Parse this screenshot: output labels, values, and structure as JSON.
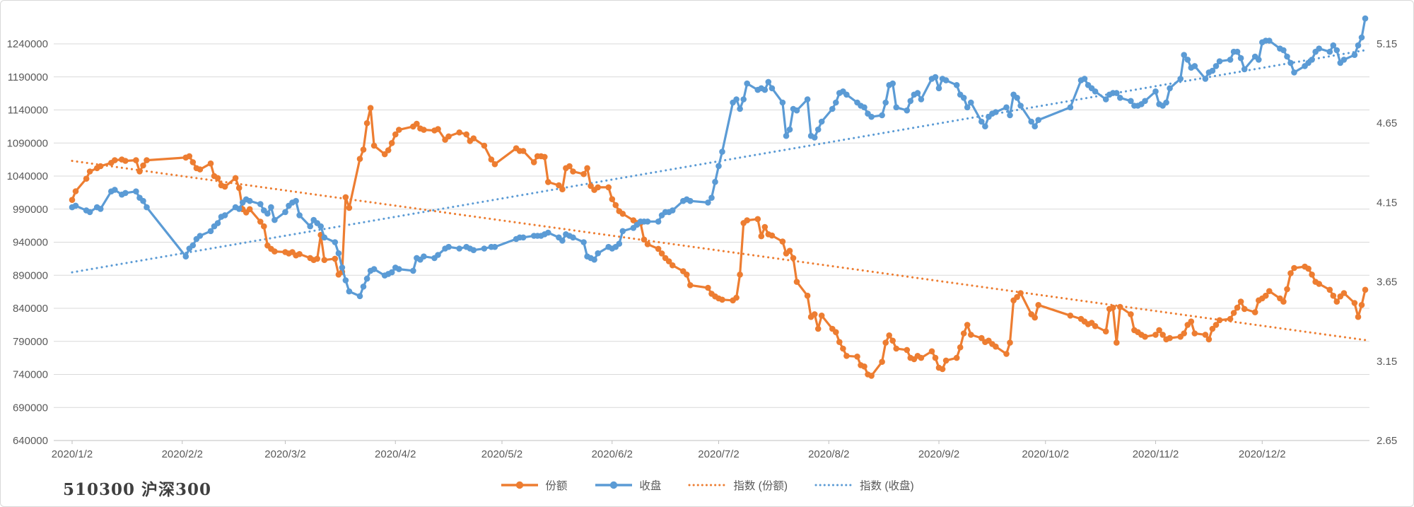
{
  "title": "510300 沪深300",
  "colors": {
    "shares": "#ED7D31",
    "close": "#5B9BD5",
    "grid": "#D9D9D9",
    "axis_line": "#BFBFBF",
    "axis_text": "#595959"
  },
  "legend": {
    "items": [
      {
        "label": "份额",
        "type": "line-marker",
        "color": "#ED7D31"
      },
      {
        "label": "收盘",
        "type": "line-marker",
        "color": "#5B9BD5"
      },
      {
        "label": "指数 (份额)",
        "type": "dotted",
        "color": "#ED7D31"
      },
      {
        "label": "指数 (收盘)",
        "type": "dotted",
        "color": "#5B9BD5"
      }
    ]
  },
  "chart_data": {
    "type": "line",
    "title": "510300 沪深300",
    "grid": true,
    "legend_position": "bottom",
    "y_left": {
      "min": 640000,
      "max": 1240000,
      "step": 50000,
      "labels": [
        "640000",
        "690000",
        "740000",
        "790000",
        "840000",
        "890000",
        "940000",
        "990000",
        "1040000",
        "1090000",
        "1140000",
        "1190000",
        "1240000"
      ]
    },
    "y_right": {
      "min": 2.65,
      "max": 5.15,
      "step": 0.5,
      "labels": [
        "2.65",
        "3.15",
        "3.65",
        "4.15",
        "4.65",
        "5.15"
      ]
    },
    "x_ticks": {
      "dates": [
        "1-2",
        "2-2",
        "3-2",
        "4-2",
        "5-2",
        "6-2",
        "7-2",
        "8-2",
        "9-2",
        "10-2",
        "11-2",
        "12-2"
      ],
      "labels": [
        "2020/1/2",
        "2020/2/2",
        "2020/3/2",
        "2020/4/2",
        "2020/5/2",
        "2020/6/2",
        "2020/7/2",
        "2020/8/2",
        "2020/9/2",
        "2020/10/2",
        "2020/11/2",
        "2020/12/2"
      ]
    },
    "dates": [
      "1-2",
      "1-3",
      "1-6",
      "1-7",
      "1-9",
      "1-10",
      "1-13",
      "1-14",
      "1-16",
      "1-17",
      "1-20",
      "1-21",
      "1-22",
      "1-23",
      "2-3",
      "2-4",
      "2-5",
      "2-6",
      "2-7",
      "2-10",
      "2-11",
      "2-12",
      "2-13",
      "2-14",
      "2-17",
      "2-18",
      "2-19",
      "2-20",
      "2-21",
      "2-24",
      "2-25",
      "2-26",
      "2-27",
      "2-28",
      "3-2",
      "3-3",
      "3-4",
      "3-5",
      "3-6",
      "3-9",
      "3-10",
      "3-11",
      "3-12",
      "3-13",
      "3-16",
      "3-17",
      "3-18",
      "3-19",
      "3-20",
      "3-23",
      "3-24",
      "3-25",
      "3-26",
      "3-27",
      "3-30",
      "3-31",
      "4-1",
      "4-2",
      "4-3",
      "4-7",
      "4-8",
      "4-9",
      "4-10",
      "4-13",
      "4-14",
      "4-16",
      "4-17",
      "4-20",
      "4-22",
      "4-23",
      "4-24",
      "4-27",
      "4-29",
      "4-30",
      "5-6",
      "5-7",
      "5-8",
      "5-11",
      "5-12",
      "5-13",
      "5-14",
      "5-15",
      "5-18",
      "5-19",
      "5-20",
      "5-21",
      "5-22",
      "5-25",
      "5-26",
      "5-27",
      "5-28",
      "5-29",
      "6-1",
      "6-2",
      "6-3",
      "6-4",
      "6-5",
      "6-8",
      "6-9",
      "6-10",
      "6-11",
      "6-12",
      "6-15",
      "6-16",
      "6-17",
      "6-18",
      "6-19",
      "6-22",
      "6-23",
      "6-24",
      "6-29",
      "6-30",
      "7-1",
      "7-2",
      "7-3",
      "7-6",
      "7-7",
      "7-8",
      "7-9",
      "7-10",
      "7-13",
      "7-14",
      "7-15",
      "7-16",
      "7-17",
      "7-20",
      "7-21",
      "7-22",
      "7-23",
      "7-24",
      "7-27",
      "7-28",
      "7-29",
      "7-30",
      "7-31",
      "8-3",
      "8-4",
      "8-5",
      "8-6",
      "8-7",
      "8-10",
      "8-11",
      "8-12",
      "8-13",
      "8-14",
      "8-17",
      "8-18",
      "8-19",
      "8-20",
      "8-21",
      "8-24",
      "8-25",
      "8-26",
      "8-27",
      "8-28",
      "8-31",
      "9-1",
      "9-2",
      "9-3",
      "9-4",
      "9-7",
      "9-8",
      "9-9",
      "9-10",
      "9-11",
      "9-14",
      "9-15",
      "9-16",
      "9-17",
      "9-18",
      "9-21",
      "9-22",
      "9-23",
      "9-24",
      "9-25",
      "9-28",
      "9-29",
      "9-30",
      "10-9",
      "10-12",
      "10-13",
      "10-14",
      "10-15",
      "10-16",
      "10-19",
      "10-20",
      "10-21",
      "10-22",
      "10-23",
      "10-26",
      "10-27",
      "10-28",
      "10-29",
      "10-30",
      "11-2",
      "11-3",
      "11-4",
      "11-5",
      "11-6",
      "11-9",
      "11-10",
      "11-11",
      "11-12",
      "11-13",
      "11-16",
      "11-17",
      "11-18",
      "11-19",
      "11-20",
      "11-23",
      "11-24",
      "11-25",
      "11-26",
      "11-27",
      "11-30",
      "12-1",
      "12-2",
      "12-3",
      "12-4",
      "12-7",
      "12-8",
      "12-9",
      "12-10",
      "12-11",
      "12-14",
      "12-15",
      "12-16",
      "12-17",
      "12-18",
      "12-21",
      "12-22",
      "12-23",
      "12-24",
      "12-25",
      "12-28",
      "12-29",
      "12-30",
      "12-31"
    ],
    "series": [
      {
        "name": "份额",
        "axis": "left",
        "color": "#ED7D31",
        "style": "line-marker",
        "values": [
          1004000,
          1017000,
          1036000,
          1047000,
          1052000,
          1055000,
          1060000,
          1064000,
          1065000,
          1063000,
          1064000,
          1047000,
          1056000,
          1064000,
          1068000,
          1070000,
          1061000,
          1052000,
          1050000,
          1059000,
          1040000,
          1037000,
          1026000,
          1024000,
          1037000,
          1022000,
          990000,
          985000,
          990000,
          971000,
          964000,
          935000,
          930000,
          926000,
          925000,
          923000,
          925000,
          920000,
          922000,
          916000,
          913000,
          915000,
          951000,
          913000,
          915000,
          891000,
          895000,
          1008000,
          992000,
          1066000,
          1080000,
          1120000,
          1143000,
          1086000,
          1073000,
          1079000,
          1090000,
          1103000,
          1110000,
          1115000,
          1119000,
          1112000,
          1110000,
          1109000,
          1111000,
          1095000,
          1100000,
          1106000,
          1103000,
          1093000,
          1097000,
          1086000,
          1065000,
          1058000,
          1082000,
          1078000,
          1078000,
          1061000,
          1070000,
          1070000,
          1069000,
          1031000,
          1026000,
          1020000,
          1052000,
          1055000,
          1047000,
          1043000,
          1052000,
          1025000,
          1019000,
          1023000,
          1023000,
          1005000,
          996000,
          987000,
          983000,
          973000,
          969000,
          969000,
          944000,
          937000,
          930000,
          923000,
          916000,
          911000,
          905000,
          896000,
          891000,
          875000,
          871000,
          862000,
          858000,
          855000,
          853000,
          852000,
          856000,
          891000,
          969000,
          973000,
          975000,
          949000,
          963000,
          952000,
          950000,
          941000,
          923000,
          927000,
          916000,
          880000,
          859000,
          827000,
          831000,
          809000,
          829000,
          809000,
          804000,
          789000,
          779000,
          768000,
          767000,
          754000,
          752000,
          740000,
          738000,
          759000,
          788000,
          799000,
          791000,
          779000,
          777000,
          765000,
          763000,
          768000,
          765000,
          775000,
          765000,
          750000,
          748000,
          761000,
          765000,
          781000,
          802000,
          815000,
          800000,
          795000,
          789000,
          791000,
          786000,
          782000,
          771000,
          788000,
          852000,
          857000,
          863000,
          831000,
          826000,
          845000,
          829000,
          824000,
          820000,
          816000,
          818000,
          813000,
          805000,
          839000,
          841000,
          788000,
          842000,
          831000,
          807000,
          804000,
          800000,
          797000,
          800000,
          807000,
          800000,
          793000,
          795000,
          797000,
          802000,
          815000,
          820000,
          802000,
          800000,
          793000,
          809000,
          815000,
          822000,
          824000,
          833000,
          841000,
          850000,
          839000,
          834000,
          852000,
          855000,
          859000,
          866000,
          855000,
          850000,
          869000,
          893000,
          901000,
          903000,
          900000,
          891000,
          880000,
          877000,
          868000,
          859000,
          850000,
          858000,
          863000,
          848000,
          827000,
          845000,
          868000
        ]
      },
      {
        "name": "收盘",
        "axis": "right",
        "color": "#5B9BD5",
        "style": "line-marker",
        "values": [
          4.12,
          4.13,
          4.1,
          4.09,
          4.12,
          4.11,
          4.22,
          4.23,
          4.2,
          4.21,
          4.22,
          4.18,
          4.16,
          4.12,
          3.81,
          3.86,
          3.88,
          3.92,
          3.94,
          3.97,
          4.0,
          4.02,
          4.06,
          4.07,
          4.12,
          4.11,
          4.15,
          4.17,
          4.16,
          4.14,
          4.1,
          4.08,
          4.12,
          4.04,
          4.09,
          4.13,
          4.15,
          4.16,
          4.07,
          4.0,
          4.04,
          4.02,
          4.0,
          3.93,
          3.9,
          3.83,
          3.74,
          3.66,
          3.59,
          3.56,
          3.62,
          3.67,
          3.72,
          3.73,
          3.69,
          3.7,
          3.71,
          3.74,
          3.73,
          3.72,
          3.8,
          3.79,
          3.81,
          3.8,
          3.82,
          3.86,
          3.87,
          3.86,
          3.87,
          3.86,
          3.85,
          3.86,
          3.87,
          3.87,
          3.92,
          3.93,
          3.93,
          3.94,
          3.94,
          3.94,
          3.95,
          3.96,
          3.93,
          3.91,
          3.95,
          3.94,
          3.93,
          3.9,
          3.81,
          3.8,
          3.79,
          3.83,
          3.87,
          3.86,
          3.87,
          3.89,
          3.97,
          3.99,
          4.01,
          4.03,
          4.03,
          4.03,
          4.03,
          4.07,
          4.09,
          4.09,
          4.1,
          4.16,
          4.17,
          4.16,
          4.15,
          4.18,
          4.28,
          4.38,
          4.47,
          4.78,
          4.8,
          4.74,
          4.8,
          4.9,
          4.86,
          4.87,
          4.86,
          4.91,
          4.87,
          4.78,
          4.57,
          4.61,
          4.74,
          4.73,
          4.8,
          4.57,
          4.56,
          4.61,
          4.66,
          4.74,
          4.78,
          4.84,
          4.85,
          4.83,
          4.78,
          4.76,
          4.75,
          4.71,
          4.69,
          4.7,
          4.78,
          4.89,
          4.9,
          4.75,
          4.73,
          4.79,
          4.83,
          4.84,
          4.8,
          4.93,
          4.94,
          4.87,
          4.93,
          4.92,
          4.89,
          4.83,
          4.81,
          4.75,
          4.78,
          4.66,
          4.63,
          4.69,
          4.71,
          4.72,
          4.75,
          4.7,
          4.83,
          4.81,
          4.76,
          4.66,
          4.63,
          4.67,
          4.75,
          4.92,
          4.93,
          4.89,
          4.87,
          4.85,
          4.8,
          4.83,
          4.84,
          4.84,
          4.81,
          4.79,
          4.76,
          4.76,
          4.77,
          4.79,
          4.85,
          4.77,
          4.76,
          4.78,
          4.87,
          4.93,
          5.08,
          5.05,
          5.0,
          5.01,
          4.93,
          4.97,
          4.98,
          5.01,
          5.04,
          5.05,
          5.1,
          5.1,
          5.06,
          4.99,
          5.07,
          5.05,
          5.16,
          5.17,
          5.17,
          5.12,
          5.11,
          5.07,
          5.03,
          4.97,
          5.01,
          5.03,
          5.05,
          5.1,
          5.12,
          5.1,
          5.14,
          5.11,
          5.03,
          5.05,
          5.08,
          5.14,
          5.19,
          5.31
        ]
      },
      {
        "name": "指数 (份额)",
        "axis": "left",
        "color": "#ED7D31",
        "style": "dotted-trend",
        "trend": {
          "start_date": "1-2",
          "start_value": 1063000,
          "end_date": "12-31",
          "end_value": 792000
        }
      },
      {
        "name": "指数 (收盘)",
        "axis": "right",
        "color": "#5B9BD5",
        "style": "dotted-trend",
        "trend": {
          "start_date": "1-2",
          "start_value": 3.71,
          "end_date": "12-31",
          "end_value": 5.11
        }
      }
    ]
  }
}
